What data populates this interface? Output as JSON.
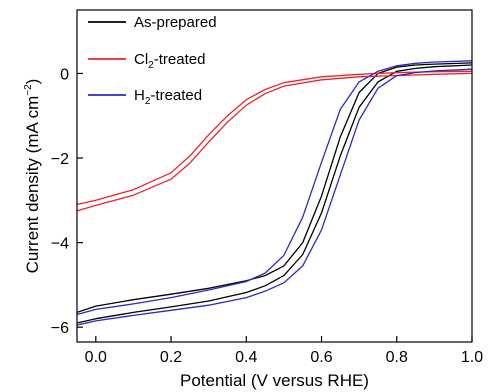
{
  "chart_data": {
    "type": "line",
    "title": "",
    "xlabel": "Potential (V versus RHE)",
    "ylabel": "Current density (mA cm",
    "ylabel_sup": "−2",
    "ylabel_close": ")",
    "xlim": [
      -0.05,
      1.0
    ],
    "ylim": [
      -6.35,
      1.5
    ],
    "x_ticks": [
      {
        "value": 0.0,
        "label": "0.0"
      },
      {
        "value": 0.2,
        "label": "0.2"
      },
      {
        "value": 0.4,
        "label": "0.4"
      },
      {
        "value": 0.6,
        "label": "0.6"
      },
      {
        "value": 0.8,
        "label": "0.8"
      },
      {
        "value": 1.0,
        "label": "1.0"
      }
    ],
    "y_ticks": [
      {
        "value": 0,
        "label": "0"
      },
      {
        "value": -2,
        "label": "−2"
      },
      {
        "value": -4,
        "label": "−4"
      },
      {
        "value": -6,
        "label": "−6"
      }
    ],
    "grid": false,
    "legend_position": "top-left",
    "series": [
      {
        "name": "As-prepared",
        "label_main": "As-prepared",
        "label_sub": "",
        "label_tail": "",
        "color": "#000000",
        "curves": [
          {
            "x": [
              -0.05,
              0.0,
              0.1,
              0.2,
              0.3,
              0.4,
              0.45,
              0.5,
              0.55,
              0.6,
              0.65,
              0.7,
              0.75,
              0.8,
              0.85,
              0.9,
              1.0
            ],
            "y": [
              -5.65,
              -5.5,
              -5.35,
              -5.22,
              -5.08,
              -4.9,
              -4.78,
              -4.55,
              -4.0,
              -2.9,
              -1.5,
              -0.45,
              0.0,
              0.15,
              0.2,
              0.22,
              0.25
            ]
          },
          {
            "x": [
              -0.05,
              0.0,
              0.1,
              0.2,
              0.3,
              0.4,
              0.45,
              0.5,
              0.55,
              0.6,
              0.65,
              0.7,
              0.75,
              0.8,
              0.85,
              0.9,
              1.0
            ],
            "y": [
              -5.9,
              -5.8,
              -5.65,
              -5.52,
              -5.38,
              -5.18,
              -5.02,
              -4.78,
              -4.28,
              -3.3,
              -1.95,
              -0.8,
              -0.2,
              0.05,
              0.12,
              0.16,
              0.2
            ]
          }
        ]
      },
      {
        "name": "Cl2-treated",
        "label_main": "Cl",
        "label_sub": "2",
        "label_tail": "-treated",
        "color": "#e8262a",
        "curves": [
          {
            "x": [
              -0.05,
              0.0,
              0.1,
              0.2,
              0.25,
              0.3,
              0.35,
              0.4,
              0.45,
              0.5,
              0.6,
              0.7,
              0.8,
              0.9,
              1.0
            ],
            "y": [
              -3.1,
              -3.0,
              -2.75,
              -2.35,
              -1.95,
              -1.45,
              -1.0,
              -0.62,
              -0.38,
              -0.22,
              -0.08,
              -0.02,
              0.02,
              0.04,
              0.05
            ]
          },
          {
            "x": [
              -0.05,
              0.0,
              0.1,
              0.2,
              0.25,
              0.3,
              0.35,
              0.4,
              0.45,
              0.5,
              0.6,
              0.7,
              0.8,
              0.9,
              1.0
            ],
            "y": [
              -3.25,
              -3.12,
              -2.88,
              -2.5,
              -2.12,
              -1.62,
              -1.15,
              -0.75,
              -0.48,
              -0.3,
              -0.15,
              -0.08,
              -0.05,
              -0.02,
              0.0
            ]
          }
        ]
      },
      {
        "name": "H2-treated",
        "label_main": "H",
        "label_sub": "2",
        "label_tail": "-treated",
        "color": "#2a2ac8",
        "curves": [
          {
            "x": [
              -0.05,
              0.0,
              0.1,
              0.2,
              0.3,
              0.4,
              0.45,
              0.5,
              0.55,
              0.6,
              0.65,
              0.7,
              0.75,
              0.8,
              0.85,
              0.9,
              1.0
            ],
            "y": [
              -5.7,
              -5.58,
              -5.45,
              -5.3,
              -5.12,
              -4.92,
              -4.72,
              -4.3,
              -3.4,
              -2.1,
              -0.85,
              -0.2,
              0.05,
              0.18,
              0.24,
              0.27,
              0.3
            ]
          },
          {
            "x": [
              -0.05,
              0.0,
              0.1,
              0.2,
              0.3,
              0.4,
              0.45,
              0.5,
              0.55,
              0.6,
              0.65,
              0.7,
              0.75,
              0.8,
              0.85,
              0.9,
              1.0
            ],
            "y": [
              -5.95,
              -5.85,
              -5.72,
              -5.6,
              -5.48,
              -5.3,
              -5.15,
              -4.95,
              -4.55,
              -3.7,
              -2.4,
              -1.1,
              -0.35,
              -0.05,
              0.02,
              0.06,
              0.1
            ]
          }
        ]
      }
    ]
  }
}
